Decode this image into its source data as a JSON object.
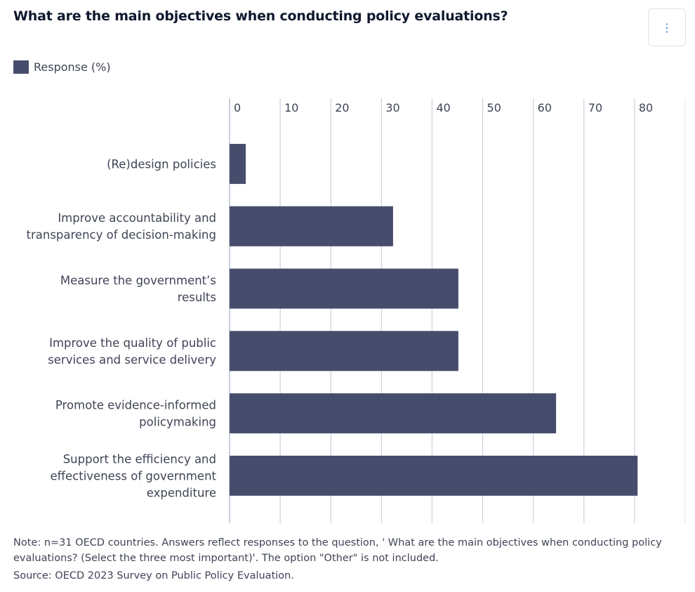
{
  "title": "What are the main objectives when conducting policy evaluations?",
  "menu_icon": "vertical-ellipsis-icon",
  "menu_label": "⋮",
  "colors": {
    "bar": "#464d6c",
    "grid": "#c9cfdb",
    "menu": "#2f6fe8"
  },
  "chart_data": {
    "type": "bar",
    "orientation": "horizontal",
    "title": "What are the main objectives when conducting policy evaluations?",
    "legend": [
      {
        "label": "Response (%)",
        "color": "#464d6c"
      }
    ],
    "legend_position": "top-left",
    "categories": [
      [
        "(Re)design policies"
      ],
      [
        "Improve accountability and",
        "transparency of decision-making"
      ],
      [
        "Measure the government’s",
        "results"
      ],
      [
        "Improve the quality of public",
        "services and service delivery"
      ],
      [
        "Promote evidence-informed",
        "policymaking"
      ],
      [
        "Support the efficiency and",
        "effectiveness of government",
        "expenditure"
      ]
    ],
    "series": [
      {
        "name": "Response (%)",
        "values": [
          3.2,
          32.3,
          45.2,
          45.2,
          64.5,
          80.6
        ]
      }
    ],
    "xlim": [
      0,
      90
    ],
    "xticks": [
      "0",
      "10",
      "20",
      "30",
      "40",
      "50",
      "60",
      "70",
      "80"
    ],
    "grid": true,
    "xaxis_position": "top"
  },
  "note": "Note: n=31 OECD countries. Answers reflect responses to the question, ' What are the main objectives when conducting policy evaluations? (Select the three most important)'. The option \"Other\" is not included.",
  "source": "Source: OECD 2023 Survey on Public Policy Evaluation."
}
